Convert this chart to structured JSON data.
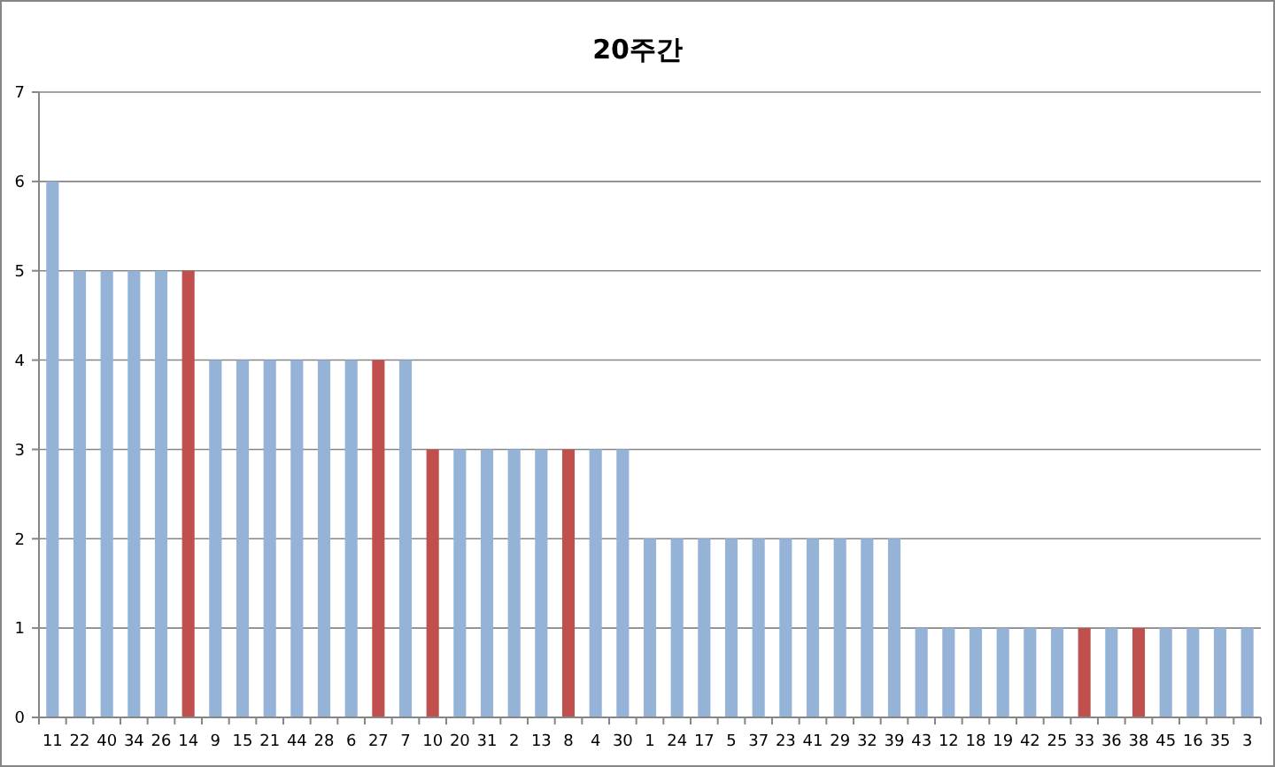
{
  "chart_data": {
    "type": "bar",
    "title": "20주간",
    "categories": [
      "11",
      "22",
      "40",
      "34",
      "26",
      "14",
      "9",
      "15",
      "21",
      "44",
      "28",
      "6",
      "27",
      "7",
      "10",
      "20",
      "31",
      "2",
      "13",
      "8",
      "4",
      "30",
      "1",
      "24",
      "17",
      "5",
      "37",
      "23",
      "41",
      "29",
      "32",
      "39",
      "43",
      "12",
      "18",
      "19",
      "42",
      "25",
      "33",
      "36",
      "38",
      "45",
      "16",
      "35",
      "3"
    ],
    "values": [
      6,
      5,
      5,
      5,
      5,
      5,
      4,
      4,
      4,
      4,
      4,
      4,
      4,
      4,
      3,
      3,
      3,
      3,
      3,
      3,
      3,
      3,
      2,
      2,
      2,
      2,
      2,
      2,
      2,
      2,
      2,
      2,
      1,
      1,
      1,
      1,
      1,
      1,
      1,
      1,
      1,
      1,
      1,
      1,
      1
    ],
    "colors": [
      "#95b3d7",
      "#95b3d7",
      "#95b3d7",
      "#95b3d7",
      "#95b3d7",
      "#c0504d",
      "#95b3d7",
      "#95b3d7",
      "#95b3d7",
      "#95b3d7",
      "#95b3d7",
      "#95b3d7",
      "#c0504d",
      "#95b3d7",
      "#c0504d",
      "#95b3d7",
      "#95b3d7",
      "#95b3d7",
      "#95b3d7",
      "#c0504d",
      "#95b3d7",
      "#95b3d7",
      "#95b3d7",
      "#95b3d7",
      "#95b3d7",
      "#95b3d7",
      "#95b3d7",
      "#95b3d7",
      "#95b3d7",
      "#95b3d7",
      "#95b3d7",
      "#95b3d7",
      "#95b3d7",
      "#95b3d7",
      "#95b3d7",
      "#95b3d7",
      "#95b3d7",
      "#95b3d7",
      "#c0504d",
      "#95b3d7",
      "#c0504d",
      "#95b3d7",
      "#95b3d7",
      "#95b3d7",
      "#95b3d7"
    ],
    "ylim": [
      0,
      7
    ],
    "yticks": [
      0,
      1,
      2,
      3,
      4,
      5,
      6,
      7
    ],
    "grid": "y"
  }
}
